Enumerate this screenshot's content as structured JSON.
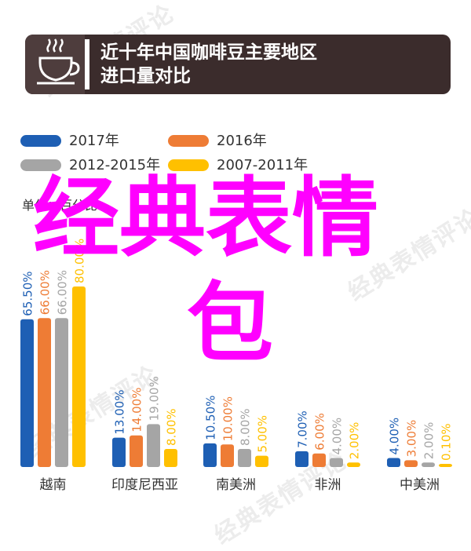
{
  "header": {
    "title_line1": "近十年中国咖啡豆主要地区",
    "title_line2": "进口量对比",
    "icon": "coffee-cup-icon",
    "background_color": "#3b2c2c"
  },
  "watermark": {
    "text": "经典表情评论"
  },
  "overlay_text": {
    "line1": "经典表情",
    "line2": "包",
    "color": "#ff00ff"
  },
  "chart_data": {
    "type": "bar",
    "unit_label": "单位：百分比",
    "categories": [
      "越南",
      "印度尼西亚",
      "南美洲",
      "非洲",
      "中美洲"
    ],
    "series": [
      {
        "name": "2017年",
        "color": "#1e5fb4",
        "values": [
          65.5,
          13.0,
          10.5,
          7.0,
          4.0
        ],
        "labels": [
          "65.50%",
          "13.00%",
          "10.50%",
          "7.00%",
          "4.00%"
        ]
      },
      {
        "name": "2016年",
        "color": "#ee7c35",
        "values": [
          66.0,
          14.0,
          10.0,
          6.0,
          3.0
        ],
        "labels": [
          "66.00%",
          "14.00%",
          "10.00%",
          "6.00%",
          "3.00%"
        ]
      },
      {
        "name": "2012-2015年",
        "color": "#a5a5a5",
        "values": [
          66.0,
          19.0,
          8.0,
          4.0,
          2.0
        ],
        "labels": [
          "66.00%",
          "19.00%",
          "8.00%",
          "4.00%",
          "2.00%"
        ]
      },
      {
        "name": "2007-2011年",
        "color": "#ffc000",
        "values": [
          80.0,
          8.0,
          5.0,
          2.0,
          0.1
        ],
        "labels": [
          "80.00%",
          "8.00%",
          "5.00%",
          "2.00%",
          "0.10%"
        ]
      }
    ],
    "ylim": [
      0,
      80
    ],
    "legend_position": "top-left",
    "grid": false
  }
}
